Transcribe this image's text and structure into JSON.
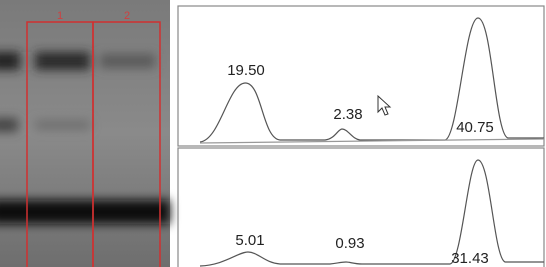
{
  "gel": {
    "lanes": [
      "1",
      "2"
    ]
  },
  "densitometry": {
    "traces": [
      {
        "peaks": [
          "19.50",
          "2.38",
          "40.75"
        ]
      },
      {
        "peaks": [
          "5.01",
          "0.93",
          "31.43"
        ]
      }
    ]
  }
}
